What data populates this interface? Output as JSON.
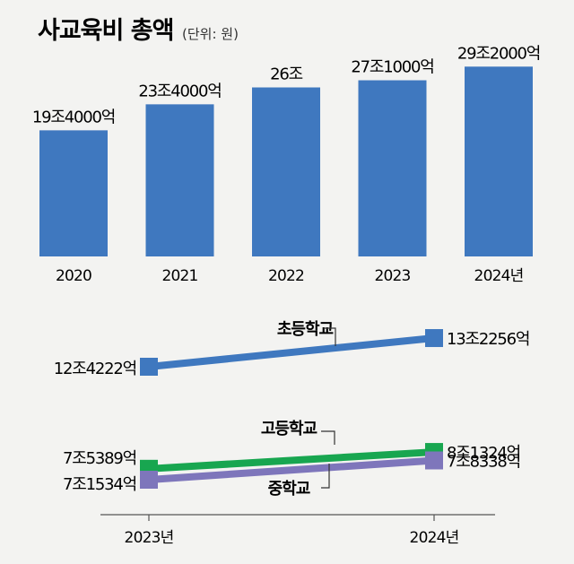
{
  "title": "사교육비 총액",
  "unit": "(단위: 원)",
  "colors": {
    "bar": "#3f78bf",
    "elementary": "#3f78bf",
    "high": "#18a650",
    "middle": "#7e76bb",
    "background": "#f3f3f1"
  },
  "chart_data": [
    {
      "type": "bar",
      "categories": [
        "2020",
        "2021",
        "2022",
        "2023",
        "2024년"
      ],
      "values": [
        194000,
        234000,
        260000,
        271000,
        292000
      ],
      "value_labels": [
        "19조4000억",
        "23조4000억",
        "26조",
        "27조1000억",
        "29조2000억"
      ],
      "unit": "억원"
    },
    {
      "type": "line",
      "categories": [
        "2023년",
        "2024년"
      ],
      "series": [
        {
          "name": "초등학교",
          "values": [
            124222,
            132256
          ],
          "value_labels": [
            "12조4222억",
            "13조2256억"
          ],
          "color": "#3f78bf"
        },
        {
          "name": "고등학교",
          "values": [
            75389,
            81324
          ],
          "value_labels": [
            "7조5389억",
            "8조1324억"
          ],
          "color": "#18a650"
        },
        {
          "name": "중학교",
          "values": [
            71534,
            78338
          ],
          "value_labels": [
            "7조1534억",
            "7조8338억"
          ],
          "color": "#7e76bb"
        }
      ],
      "unit": "억원"
    }
  ]
}
